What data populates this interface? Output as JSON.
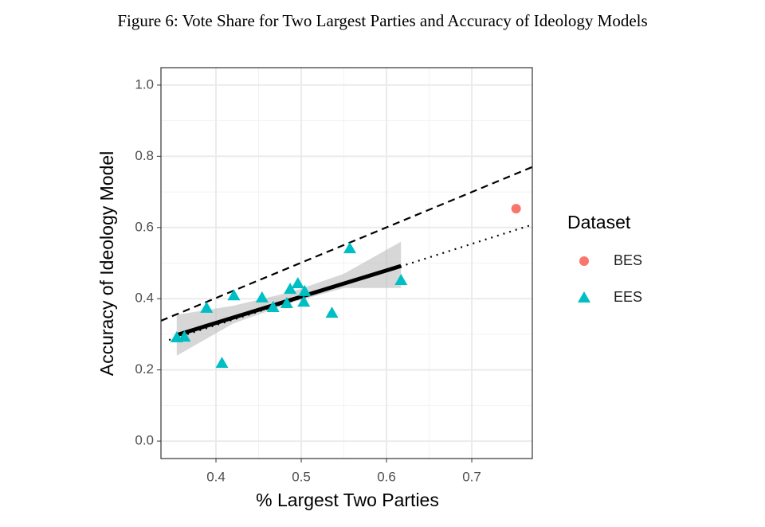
{
  "chart_data": {
    "type": "scatter",
    "title": "Figure 6: Vote Share for Two Largest Parties and Accuracy of Ideology Models",
    "x_label": "% Largest Two Parties",
    "y_label": "Accuracy of Ideology Model",
    "legend_title": "Dataset",
    "legend": "right",
    "grid": true,
    "xlim": [
      0.3355,
      0.771
    ],
    "ylim": [
      -0.049,
      1.049
    ],
    "xticks": [
      0.4,
      0.5,
      0.6,
      0.7
    ],
    "yticks": [
      {
        "value": 0,
        "label": "0.0"
      },
      0.2,
      0.4,
      0.6,
      0.8,
      {
        "value": 1,
        "label": "1.0"
      }
    ],
    "series": [
      {
        "name": "BES",
        "color": "#F8766D",
        "marker": "circle",
        "x": [
          0.752
        ],
        "values": [
          0.653
        ]
      },
      {
        "name": "EES",
        "color": "#00BFC4",
        "marker": "triangle",
        "x": [
          0.354,
          0.363,
          0.389,
          0.407,
          0.421,
          0.454,
          0.467,
          0.483,
          0.487,
          0.496,
          0.504,
          0.503,
          0.536,
          0.557,
          0.617
        ],
        "values": [
          0.291,
          0.293,
          0.374,
          0.219,
          0.409,
          0.403,
          0.376,
          0.387,
          0.427,
          0.443,
          0.421,
          0.391,
          0.36,
          0.541,
          0.452
        ]
      }
    ],
    "band": {
      "color": "#bdbdbd",
      "x": [
        0.354,
        0.42,
        0.49,
        0.55,
        0.617
      ],
      "lower": [
        0.24,
        0.33,
        0.39,
        0.43,
        0.43
      ],
      "upper": [
        0.355,
        0.38,
        0.42,
        0.47,
        0.56
      ]
    },
    "fit": {
      "color": "#000000",
      "style": "solid",
      "x": [
        0.354,
        0.617
      ],
      "values": [
        0.298,
        0.492
      ]
    },
    "reference_lines": [
      {
        "style": "dashed",
        "color": "#000000",
        "x": [
          0.3355,
          0.771
        ],
        "values": [
          0.338,
          0.77
        ]
      },
      {
        "style": "dotted",
        "color": "#000000",
        "x": [
          0.345,
          0.771
        ],
        "values": [
          0.284,
          0.608
        ]
      }
    ]
  }
}
